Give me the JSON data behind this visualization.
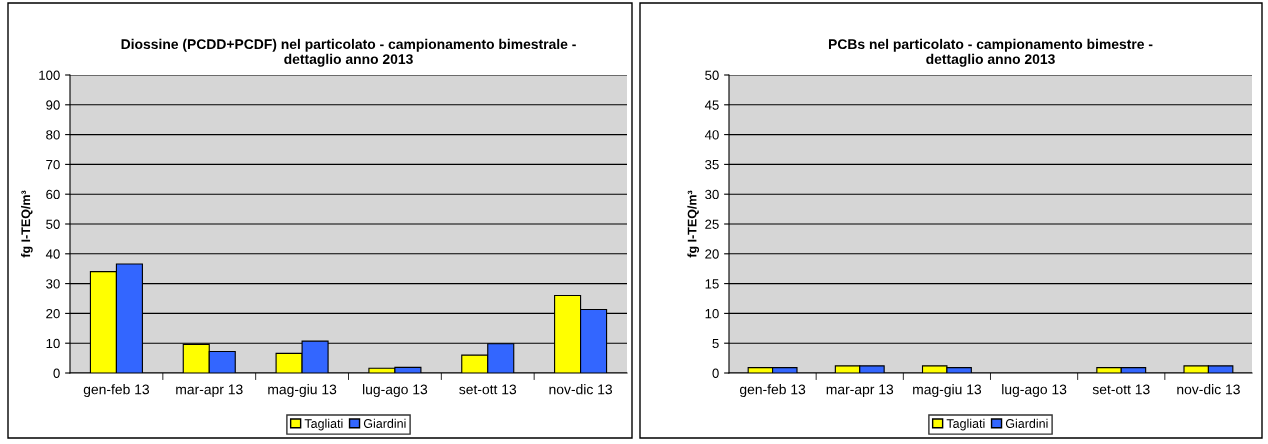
{
  "chart_data": [
    {
      "type": "bar",
      "title": "Diossine (PCDD+PCDF) nel particolato - campionamento bimestrale -\ndettaglio anno 2013",
      "ylabel": "fg I-TEQ/m³",
      "categories": [
        "gen-feb 13",
        "mar-apr 13",
        "mag-giu 13",
        "lug-ago 13",
        "set-ott 13",
        "nov-dic 13"
      ],
      "series": [
        {
          "name": "Tagliati",
          "color": "#ffff00",
          "values": [
            34,
            9.6,
            6.6,
            1.6,
            6,
            26
          ]
        },
        {
          "name": "Giardini",
          "color": "#3366ff",
          "values": [
            36.6,
            7.2,
            10.7,
            1.9,
            9.8,
            21.3
          ]
        }
      ],
      "ylim": [
        0,
        100
      ],
      "yticks": [
        0,
        10,
        20,
        30,
        40,
        50,
        60,
        70,
        80,
        90,
        100
      ],
      "grid": "y",
      "legend": "bottom"
    },
    {
      "type": "bar",
      "title": "PCBs nel particolato - campionamento bimestre -\ndettaglio anno 2013",
      "ylabel": "fg I-TEQ/m³",
      "categories": [
        "gen-feb 13",
        "mar-apr 13",
        "mag-giu 13",
        "lug-ago 13",
        "set-ott 13",
        "nov-dic 13"
      ],
      "series": [
        {
          "name": "Tagliati",
          "color": "#ffff00",
          "values": [
            0.9,
            1.2,
            1.2,
            null,
            0.9,
            1.2
          ]
        },
        {
          "name": "Giardini",
          "color": "#3366ff",
          "values": [
            0.9,
            1.2,
            0.9,
            null,
            0.9,
            1.2
          ]
        }
      ],
      "ylim": [
        0,
        50
      ],
      "yticks": [
        0,
        5,
        10,
        15,
        20,
        25,
        30,
        35,
        40,
        45,
        50
      ],
      "grid": "y",
      "legend": "bottom"
    }
  ]
}
